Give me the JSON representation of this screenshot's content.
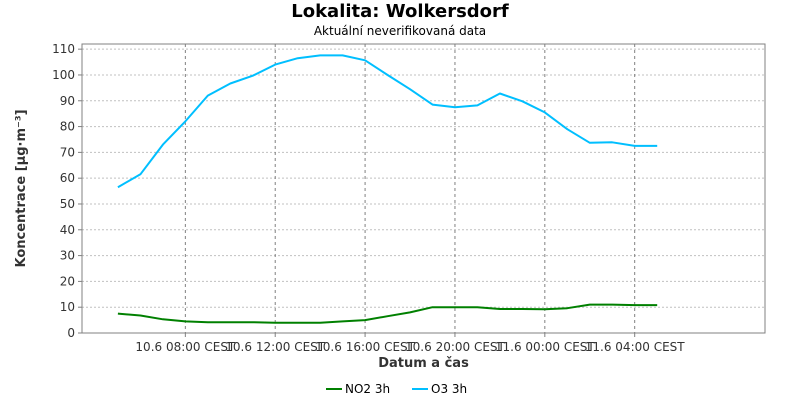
{
  "chart_data": {
    "type": "line",
    "title": "Lokalita: Wolkersdorf",
    "subtitle": "Aktuální neverifikovaná data",
    "xlabel": "Datum a čas",
    "ylabel": "Koncentrace [µg·m⁻³]",
    "ylim": [
      0,
      112
    ],
    "yticks": [
      0,
      10,
      20,
      30,
      40,
      50,
      60,
      70,
      80,
      90,
      100,
      110
    ],
    "x_range": [
      3.4,
      33.8
    ],
    "xticks": [
      {
        "x": 8,
        "label": "10.6 08:00 CEST"
      },
      {
        "x": 12,
        "label": "10.6 12:00 CEST"
      },
      {
        "x": 16,
        "label": "10.6 16:00 CEST"
      },
      {
        "x": 20,
        "label": "10.6 20:00 CEST"
      },
      {
        "x": 24,
        "label": "11.6 00:00 CEST"
      },
      {
        "x": 28,
        "label": "11.6 04:00 CEST"
      }
    ],
    "x": [
      5,
      6,
      7,
      8,
      9,
      10,
      11,
      12,
      13,
      14,
      15,
      16,
      17,
      18,
      19,
      20,
      21,
      22,
      23,
      24,
      25,
      26,
      27,
      28,
      29
    ],
    "grid": true,
    "legend_position": "bottom",
    "series": [
      {
        "name": "NO2 3h",
        "color": "#008000",
        "values": [
          7.5,
          6.8,
          5.3,
          4.5,
          4.2,
          4.2,
          4.2,
          4.0,
          4.0,
          4.0,
          4.5,
          5.0,
          6.5,
          8.0,
          10.0,
          10.0,
          10.0,
          9.3,
          9.3,
          9.2,
          9.6,
          11.0,
          11.0,
          10.8,
          10.8
        ]
      },
      {
        "name": "O3 3h",
        "color": "#00bfff",
        "values": [
          56.5,
          61.5,
          73.0,
          82.0,
          92.0,
          96.7,
          99.7,
          104.0,
          106.5,
          107.6,
          107.6,
          105.7,
          100.0,
          94.5,
          88.5,
          87.5,
          88.2,
          92.8,
          89.8,
          85.5,
          79.0,
          73.7,
          73.9,
          72.5,
          72.5
        ]
      }
    ]
  }
}
